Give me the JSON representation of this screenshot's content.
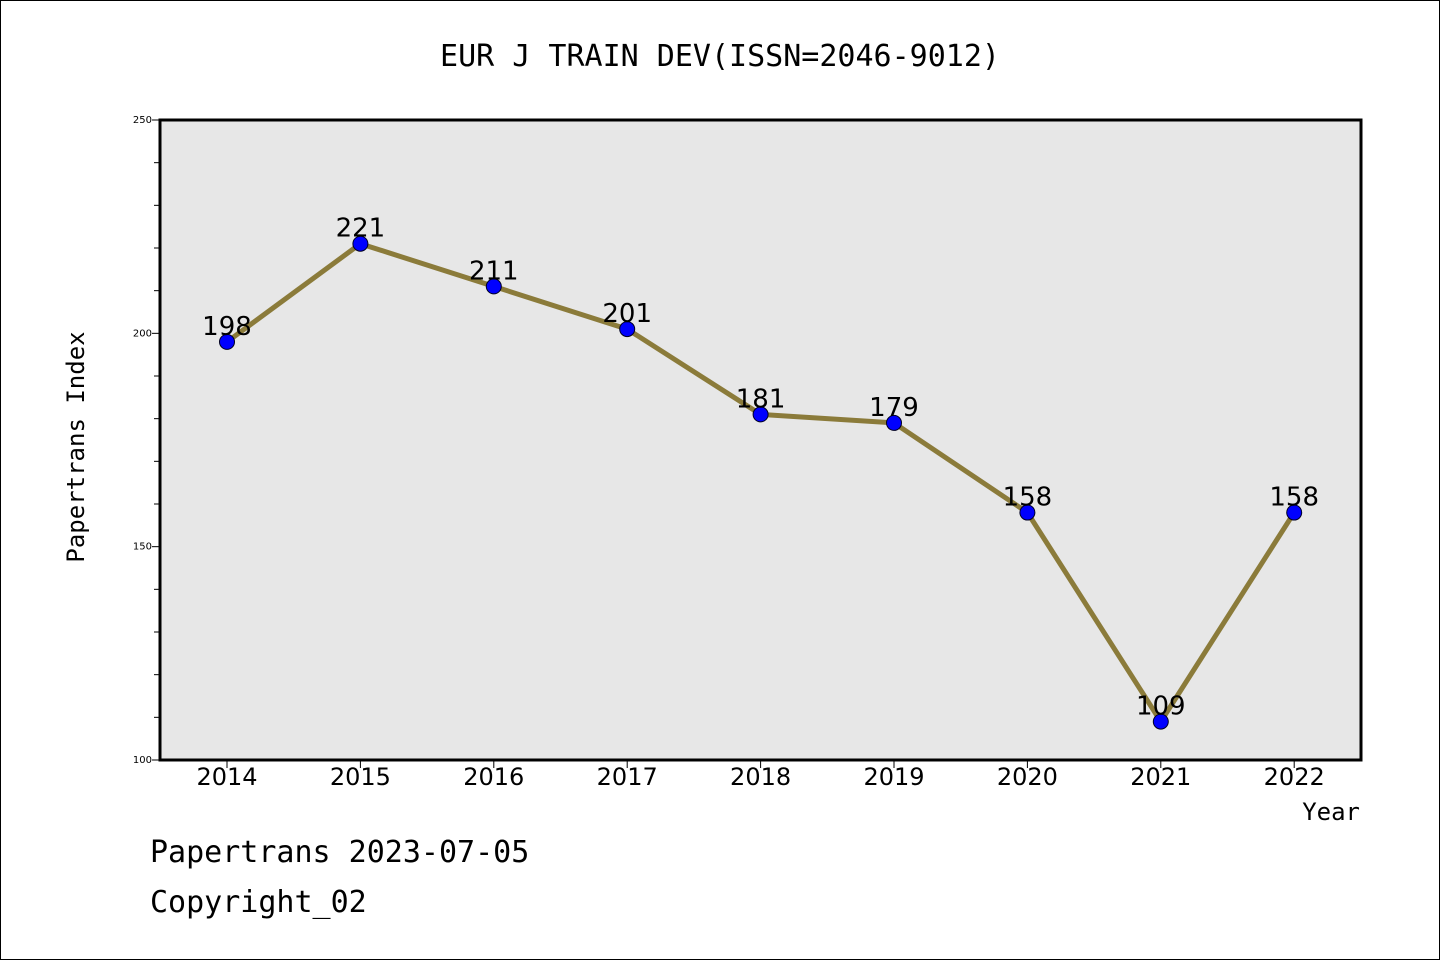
{
  "chart_data": {
    "type": "line",
    "title": "EUR J TRAIN DEV(ISSN=2046-9012)",
    "xlabel": "Year",
    "ylabel": "Papertrans Index",
    "x": [
      "2014",
      "2015",
      "2016",
      "2017",
      "2018",
      "2019",
      "2020",
      "2021",
      "2022"
    ],
    "series": [
      {
        "values": [
          198,
          221,
          211,
          201,
          181,
          179,
          158,
          109,
          158
        ],
        "data_labels": [
          "198",
          "221",
          "211",
          "201",
          "181",
          "179",
          "158",
          "109",
          "158"
        ]
      }
    ],
    "ylim": [
      100,
      250
    ],
    "yticks": [
      "100",
      "150",
      "200",
      "250"
    ],
    "grid": false,
    "legend": "none",
    "colors": {
      "line": "#8B7B3A",
      "marker": "#0000FF",
      "plot_background": "#E7E7E7"
    }
  },
  "footer": {
    "date_line": "Papertrans 2023-07-05",
    "copyright": "Copyright_02"
  }
}
